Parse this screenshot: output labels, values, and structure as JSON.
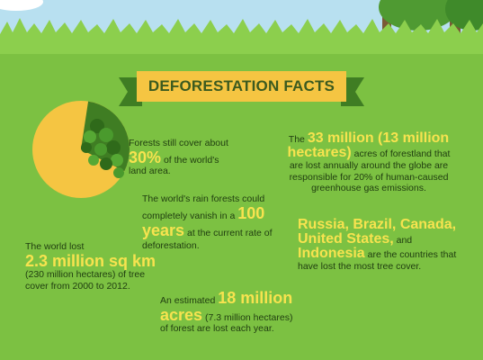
{
  "header": {
    "title": "DEFORESTATION FACTS"
  },
  "facts": {
    "cover": {
      "pre": "Forests still cover about",
      "value": "30%",
      "post": "of the world's land area."
    },
    "emissions": {
      "pre": "The",
      "value": "33 million (13 million hectares)",
      "post": "acres of forestland that are lost annually around the globe are responsible for 20% of human-caused greenhouse gas emissions."
    },
    "rainforest": {
      "pre": "The world's rain forests could completely vanish in a",
      "value": "100 years",
      "post": "at the current rate of deforestation."
    },
    "lost": {
      "pre": "The world lost",
      "value": "2.3 million sq km",
      "post": "(230 million hectares) of tree cover from 2000 to 2012."
    },
    "countries": {
      "value1": "Russia, Brazil, Canada, United States,",
      "mid": "and",
      "value2": "Indonesia",
      "post": "are the countries that have lost the most tree cover."
    },
    "yearly": {
      "pre": "An estimated",
      "value": "18 million acres",
      "post": "(7.3 million hectares) of forest are lost each year."
    }
  },
  "pie_chart": {
    "forest_fraction": 0.3,
    "forest_color": "#3f7d23",
    "land_color": "#f5c542"
  },
  "colors": {
    "background": "#7cc142",
    "accent": "#f7e34f",
    "banner": "#f5c542",
    "text": "#1f3d10"
  }
}
